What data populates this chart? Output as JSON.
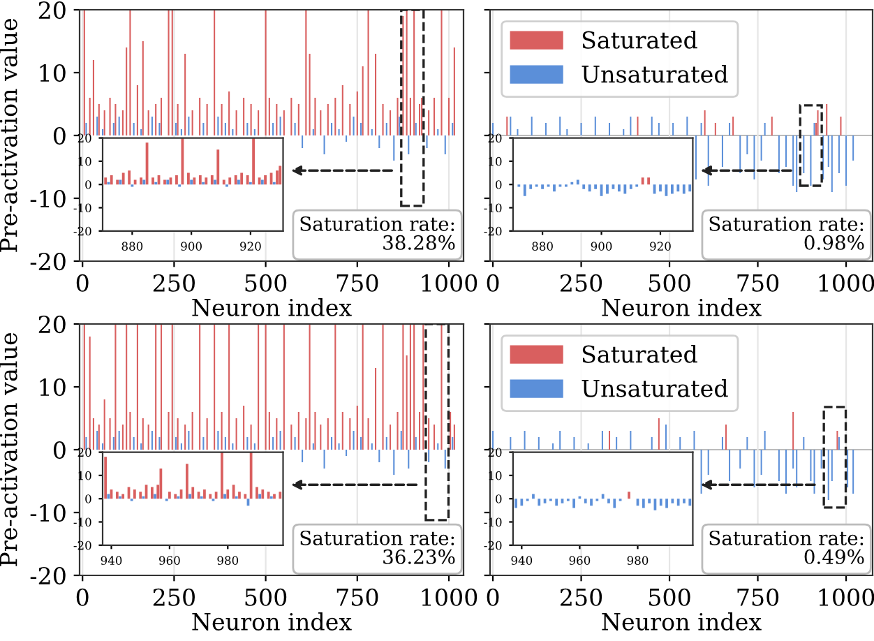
{
  "chart_data": [
    {
      "type": "bar",
      "xlabel": "Neuron index",
      "ylabel": "Pre-activation value",
      "xlim": [
        -8,
        1040
      ],
      "ylim": [
        -20,
        20
      ],
      "xticks": [
        0,
        250,
        500,
        750,
        1000
      ],
      "yticks": [
        -20,
        -10,
        0,
        10,
        20
      ],
      "grid": "x",
      "legend": false,
      "annotations": [
        "Saturation rate:\n38.28%"
      ],
      "series": [
        {
          "color": "#d95f5f",
          "x": [
            5,
            20,
            30,
            45,
            60,
            75,
            90,
            110,
            120,
            130,
            150,
            165,
            180,
            200,
            215,
            235,
            245,
            260,
            280,
            300,
            320,
            340,
            360,
            380,
            400,
            420,
            440,
            460,
            480,
            500,
            510,
            530,
            550,
            570,
            590,
            610,
            620,
            635,
            650,
            670,
            690,
            710,
            730,
            750,
            765,
            780,
            800,
            820,
            840,
            860,
            875,
            885,
            895,
            905,
            920,
            926,
            945,
            960,
            980,
            1000,
            1015
          ],
          "values": [
            20,
            6,
            12,
            5,
            4,
            6,
            5,
            4,
            14,
            20,
            8,
            15,
            4,
            5,
            6,
            20,
            20,
            5,
            13,
            4,
            6,
            5,
            20,
            5,
            7,
            4,
            6,
            5,
            4,
            20,
            6,
            5,
            4,
            6,
            5,
            20,
            13,
            6,
            4,
            5,
            6,
            8,
            5,
            7,
            11,
            20,
            13,
            5,
            4,
            6,
            19,
            20,
            6,
            20,
            5,
            6,
            4,
            6,
            20,
            6,
            14
          ]
        },
        {
          "color": "#5b8fd9",
          "x": [
            10,
            25,
            40,
            55,
            70,
            85,
            100,
            115,
            140,
            160,
            175,
            190,
            210,
            225,
            255,
            270,
            290,
            310,
            330,
            350,
            370,
            390,
            410,
            430,
            450,
            470,
            490,
            520,
            540,
            560,
            580,
            600,
            630,
            660,
            680,
            700,
            720,
            740,
            760,
            790,
            810,
            830,
            850,
            865,
            890,
            910,
            940,
            970,
            990,
            1010
          ],
          "values": [
            2,
            null,
            3,
            1,
            null,
            2,
            3,
            null,
            2,
            1,
            null,
            3,
            2,
            null,
            2,
            1,
            3,
            null,
            2,
            null,
            3,
            2,
            1,
            null,
            2,
            1,
            null,
            2,
            3,
            null,
            2,
            -2,
            1,
            -3,
            2,
            1,
            -1,
            3,
            2,
            1,
            -2,
            2,
            -4,
            3,
            -3,
            2,
            -2,
            1,
            -3,
            2
          ]
        }
      ]
    },
    {
      "type": "bar",
      "xlim": [
        870,
        931
      ],
      "ylim": [
        -20,
        20
      ],
      "xticks": [
        880,
        900,
        920
      ],
      "yticks": [
        -20,
        -10,
        0,
        10,
        20
      ],
      "legend": false,
      "series": [
        {
          "color": "#d95f5f",
          "x": [
            871,
            873,
            875,
            877,
            879,
            881,
            883,
            885,
            887,
            889,
            891,
            893,
            895,
            897,
            899,
            901,
            903,
            905,
            907,
            909,
            911,
            913,
            915,
            917,
            919,
            921,
            923,
            925,
            927,
            929,
            930
          ],
          "values": [
            3,
            4,
            2,
            5,
            6,
            2,
            3,
            18,
            3,
            4,
            2,
            3,
            4,
            20,
            5,
            3,
            4,
            3,
            4,
            15,
            2,
            3,
            4,
            5,
            4,
            20,
            3,
            4,
            5,
            6,
            8
          ]
        },
        {
          "color": "#5b8fd9",
          "x": [
            872,
            876,
            880,
            884,
            888,
            892,
            896,
            900,
            904,
            908,
            912,
            916,
            920,
            924,
            928
          ],
          "values": [
            1,
            2,
            -1,
            2,
            1,
            2,
            -1,
            2,
            1,
            2,
            -1,
            2,
            1,
            2,
            1
          ]
        }
      ]
    },
    {
      "type": "bar",
      "xlabel": "Neuron index",
      "xlim": [
        -8,
        1075
      ],
      "ylim": [
        -20,
        20
      ],
      "xticks": [
        0,
        250,
        500,
        750,
        1000
      ],
      "yticks": [
        -20,
        -10,
        0,
        10,
        20
      ],
      "tick_labels": "x",
      "grid": "x",
      "legend": "top left",
      "annotations": [
        "Saturation rate:\n0.98%"
      ],
      "ref_lines": [
        {
          "axis": "y",
          "value": 0,
          "color": "#bbbbbb"
        }
      ],
      "series": [
        {
          "name": "Saturated",
          "color": "#d95f5f",
          "x": [
            40,
            410,
            600,
            630,
            680,
            790,
            915,
            920,
            945,
            985
          ],
          "values": [
            3,
            3,
            4,
            2,
            3,
            3,
            2,
            4,
            5,
            3
          ]
        },
        {
          "name": "Unsaturated",
          "color": "#5b8fd9",
          "x": [
            0,
            20,
            50,
            70,
            90,
            110,
            130,
            150,
            170,
            190,
            210,
            230,
            250,
            270,
            290,
            310,
            330,
            350,
            370,
            390,
            430,
            450,
            470,
            490,
            510,
            530,
            550,
            575,
            590,
            610,
            650,
            670,
            700,
            720,
            740,
            760,
            770,
            810,
            830,
            850,
            860,
            880,
            900,
            910,
            935,
            950,
            960,
            980,
            1000,
            1020
          ],
          "values": [
            2,
            null,
            3,
            1,
            null,
            3,
            null,
            2,
            null,
            3,
            1,
            null,
            2,
            null,
            3,
            null,
            2,
            null,
            1,
            3,
            null,
            3,
            2,
            null,
            2,
            null,
            3,
            -7,
            2,
            -8,
            -5,
            2,
            -6,
            -3,
            -7,
            -4,
            2,
            -6,
            -5,
            -8,
            -9,
            -6,
            -8,
            2,
            -7,
            -5,
            -9,
            -6,
            -8,
            -4
          ]
        }
      ]
    },
    {
      "type": "bar",
      "xlim": [
        870,
        931
      ],
      "ylim": [
        -20,
        20
      ],
      "xticks": [
        880,
        900,
        920
      ],
      "yticks": [
        -20,
        -10,
        0,
        10,
        20
      ],
      "legend": false,
      "series": [
        {
          "color": "#d95f5f",
          "x": [
            914,
            916
          ],
          "values": [
            3,
            3
          ]
        },
        {
          "color": "#5b8fd9",
          "x": [
            872,
            874,
            876,
            878,
            880,
            882,
            884,
            886,
            888,
            890,
            892,
            894,
            896,
            898,
            900,
            902,
            904,
            906,
            908,
            910,
            912,
            918,
            920,
            922,
            924,
            926,
            928,
            930
          ],
          "values": [
            -1,
            -5,
            -2,
            -1,
            -2,
            -1,
            -3,
            -1,
            -1,
            1,
            2,
            -2,
            -3,
            -2,
            -5,
            -4,
            -2,
            -3,
            -4,
            -2,
            -1,
            -4,
            -3,
            -5,
            -4,
            -3,
            -4,
            -3
          ]
        }
      ]
    },
    {
      "type": "bar",
      "xlabel": "Neuron index",
      "ylabel": "Pre-activation value",
      "xlim": [
        -8,
        1040
      ],
      "ylim": [
        -20,
        20
      ],
      "xticks": [
        0,
        250,
        500,
        750,
        1000
      ],
      "yticks": [
        -20,
        -10,
        0,
        10,
        20
      ],
      "grid": "x",
      "legend": false,
      "annotations": [
        "Saturation rate:\n36.23%"
      ],
      "series": [
        {
          "color": "#d95f5f",
          "x": [
            5,
            20,
            30,
            45,
            60,
            75,
            90,
            110,
            120,
            130,
            150,
            165,
            180,
            200,
            215,
            235,
            245,
            260,
            280,
            300,
            320,
            340,
            360,
            380,
            400,
            420,
            440,
            460,
            480,
            500,
            510,
            530,
            550,
            570,
            590,
            610,
            620,
            635,
            650,
            670,
            690,
            710,
            730,
            750,
            765,
            780,
            800,
            820,
            840,
            860,
            875,
            885,
            895,
            905,
            920,
            930,
            945,
            960,
            980,
            1004,
            1015
          ],
          "values": [
            20,
            18,
            5,
            4,
            8,
            5,
            20,
            4,
            20,
            6,
            20,
            5,
            4,
            20,
            20,
            6,
            20,
            5,
            4,
            6,
            20,
            5,
            20,
            6,
            20,
            5,
            7,
            4,
            20,
            20,
            6,
            5,
            20,
            4,
            6,
            5,
            20,
            6,
            4,
            5,
            20,
            6,
            5,
            7,
            20,
            5,
            13,
            20,
            4,
            6,
            20,
            15,
            20,
            20,
            6,
            20,
            5,
            4,
            20,
            6,
            4
          ]
        },
        {
          "color": "#5b8fd9",
          "x": [
            10,
            25,
            40,
            55,
            70,
            85,
            100,
            115,
            140,
            160,
            175,
            190,
            210,
            225,
            255,
            270,
            290,
            310,
            330,
            350,
            370,
            390,
            410,
            430,
            450,
            470,
            490,
            520,
            540,
            560,
            580,
            600,
            630,
            660,
            680,
            700,
            720,
            740,
            760,
            790,
            810,
            830,
            850,
            870,
            890,
            910,
            945,
            970,
            990,
            1010
          ],
          "values": [
            2,
            null,
            3,
            1,
            null,
            2,
            3,
            null,
            2,
            1,
            null,
            3,
            2,
            null,
            2,
            1,
            3,
            null,
            2,
            null,
            3,
            2,
            1,
            null,
            2,
            1,
            null,
            2,
            3,
            null,
            2,
            -2,
            1,
            -3,
            2,
            1,
            -1,
            3,
            2,
            1,
            -2,
            2,
            -4,
            3,
            -3,
            2,
            -2,
            1,
            -3,
            2
          ]
        }
      ]
    },
    {
      "type": "bar",
      "xlim": [
        937,
        999
      ],
      "ylim": [
        -20,
        20
      ],
      "xticks": [
        940,
        960,
        980
      ],
      "yticks": [
        -20,
        -10,
        0,
        10,
        20
      ],
      "legend": false,
      "series": [
        {
          "color": "#d95f5f",
          "x": [
            938,
            940,
            942,
            944,
            946,
            948,
            950,
            952,
            954,
            956,
            957,
            960,
            962,
            964,
            966,
            968,
            970,
            972,
            974,
            976,
            978,
            980,
            982,
            984,
            986,
            988,
            990,
            992,
            994,
            996,
            998
          ],
          "values": [
            18,
            4,
            3,
            2,
            5,
            4,
            3,
            6,
            5,
            6,
            13,
            3,
            2,
            4,
            15,
            5,
            3,
            4,
            2,
            3,
            20,
            4,
            6,
            3,
            2,
            20,
            5,
            4,
            3,
            2,
            3
          ]
        },
        {
          "color": "#5b8fd9",
          "x": [
            939,
            943,
            947,
            951,
            955,
            959,
            963,
            967,
            971,
            975,
            979,
            983,
            987,
            991,
            995
          ],
          "values": [
            2,
            1,
            -1,
            1,
            2,
            -1,
            1,
            2,
            1,
            -1,
            2,
            1,
            -3,
            2,
            1
          ]
        }
      ]
    },
    {
      "type": "bar",
      "xlabel": "Neuron index",
      "xlim": [
        -8,
        1075
      ],
      "ylim": [
        -20,
        20
      ],
      "xticks": [
        0,
        250,
        500,
        750,
        1000
      ],
      "yticks": [
        -20,
        -10,
        0,
        10,
        20
      ],
      "tick_labels": "x",
      "grid": "x",
      "legend": "top left",
      "annotations": [
        "Saturation rate:\n0.49%"
      ],
      "ref_lines": [
        {
          "axis": "y",
          "value": 0,
          "color": "#bbbbbb"
        }
      ],
      "series": [
        {
          "name": "Saturated",
          "color": "#d95f5f",
          "x": [
            330,
            470,
            660,
            850,
            975
          ],
          "values": [
            3,
            5,
            4,
            6,
            3
          ]
        },
        {
          "name": "Unsaturated",
          "color": "#5b8fd9",
          "x": [
            0,
            20,
            50,
            70,
            90,
            110,
            130,
            150,
            170,
            190,
            210,
            230,
            250,
            270,
            290,
            310,
            330,
            350,
            370,
            390,
            430,
            450,
            470,
            490,
            510,
            530,
            550,
            570,
            590,
            610,
            650,
            670,
            700,
            720,
            740,
            760,
            770,
            810,
            830,
            850,
            860,
            880,
            900,
            910,
            930,
            950,
            960,
            980,
            1004,
            1020
          ],
          "values": [
            3,
            null,
            2,
            null,
            3,
            null,
            2,
            null,
            1,
            3,
            null,
            2,
            null,
            1,
            null,
            3,
            null,
            2,
            null,
            3,
            null,
            2,
            null,
            4,
            null,
            2,
            null,
            3,
            -7,
            -4,
            2,
            -5,
            -3,
            2,
            -6,
            -4,
            3,
            -5,
            -7,
            -3,
            -6,
            2,
            -5,
            -7,
            -3,
            -8,
            -5,
            2,
            -6,
            -7
          ]
        }
      ]
    },
    {
      "type": "bar",
      "xlim": [
        937,
        999
      ],
      "ylim": [
        -20,
        20
      ],
      "xticks": [
        940,
        960,
        980
      ],
      "yticks": [
        -20,
        -10,
        0,
        10,
        20
      ],
      "legend": false,
      "series": [
        {
          "color": "#d95f5f",
          "x": [
            977
          ],
          "values": [
            3
          ]
        },
        {
          "color": "#5b8fd9",
          "x": [
            938,
            940,
            942,
            944,
            946,
            948,
            950,
            952,
            954,
            956,
            958,
            960,
            962,
            964,
            966,
            968,
            970,
            972,
            974,
            980,
            982,
            984,
            986,
            988,
            990,
            992,
            994,
            996,
            998
          ],
          "values": [
            -4,
            -3,
            -1,
            2,
            -3,
            -2,
            -1,
            -3,
            -2,
            -1,
            -4,
            1,
            -2,
            -3,
            -1,
            2,
            -2,
            -4,
            -1,
            -3,
            -4,
            -2,
            -5,
            -3,
            -4,
            -2,
            -3,
            -2,
            -3
          ]
        }
      ]
    }
  ]
}
